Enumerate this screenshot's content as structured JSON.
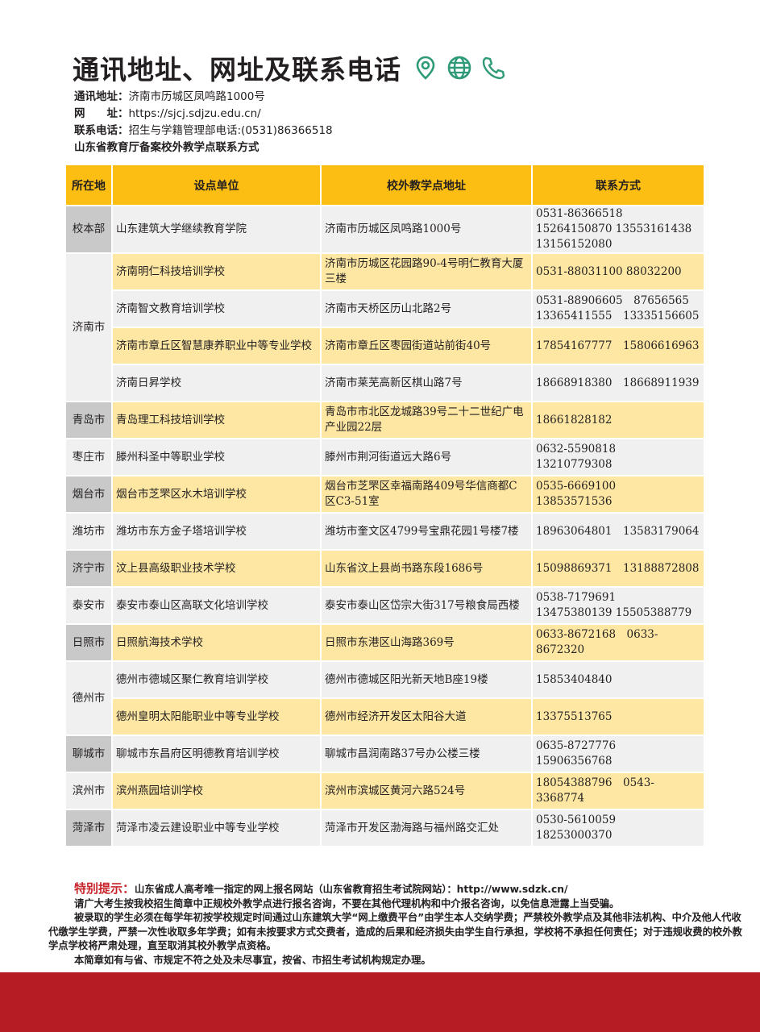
{
  "header": {
    "title": "通讯地址、网址及联系电话",
    "icons": [
      "location-pin-icon",
      "globe-icon",
      "phone-icon"
    ],
    "accent_color": "#2e9a78",
    "address_label": "通讯地址：",
    "address": "济南市历城区凤鸣路1000号",
    "website_label": "网　　址：",
    "website": "https://sjcj.sdjzu.edu.cn/",
    "phone_label": "联系电话：",
    "phone": "招生与学籍管理部电话:(0531)86366518",
    "subtitle": "山东省教育厅备案校外教学点联系方式"
  },
  "table": {
    "columns": [
      "所在地",
      "设点单位",
      "校外教学点地址",
      "联系方式"
    ],
    "colors": {
      "header": "#fdbe13",
      "highlight": "#fde7a3",
      "plain": "#f0f0f0",
      "city_dark": "#c9c9c9"
    },
    "rows": [
      {
        "city": "校本部",
        "unit": "山东建筑大学继续教育学院",
        "address": "济南市历城区凤鸣路1000号",
        "contact": "0531-86366518  15264150870 13553161438　 13156152080"
      },
      {
        "city": "济南市",
        "unit": "济南明仁科技培训学校",
        "address": "济南市历城区花园路90-4号明仁教育大厦三楼",
        "contact": "0531-88031100 88032200"
      },
      {
        "city": "",
        "unit": "济南智文教育培训学校",
        "address": "济南市天桥区历山北路2号",
        "contact": "0531-88906605　87656565 13365411555　13335156605"
      },
      {
        "city": "",
        "unit": "济南市章丘区智慧康养职业中等专业学校",
        "address": "济南市章丘区枣园街道站前街40号",
        "contact": "17854167777　15806616963"
      },
      {
        "city": "",
        "unit": "济南日昇学校",
        "address": "济南市莱芜高新区棋山路7号",
        "contact": "18668918380　18668911939"
      },
      {
        "city": "青岛市",
        "unit": "青岛理工科技培训学校",
        "address": "青岛市市北区龙城路39号二十二世纪广电产业园22层",
        "contact": "18661828182"
      },
      {
        "city": "枣庄市",
        "unit": "滕州科圣中等职业学校",
        "address": "滕州市荆河街道远大路6号",
        "contact": "0632-5590818　13210779308"
      },
      {
        "city": "烟台市",
        "unit": "烟台市芝罘区水木培训学校",
        "address": "烟台市芝罘区幸福南路409号华信商都C区C3-51室",
        "contact": "0535-6669100　13853571536"
      },
      {
        "city": "潍坊市",
        "unit": "潍坊市东方金子塔培训学校",
        "address": "潍坊市奎文区4799号宝鼎花园1号楼7楼",
        "contact": "18963064801　13583179064"
      },
      {
        "city": "济宁市",
        "unit": "汶上县高级职业技术学校",
        "address": "山东省汶上县尚书路东段1686号",
        "contact": "15098869371　13188872808"
      },
      {
        "city": "泰安市",
        "unit": "泰安市泰山区高联文化培训学校",
        "address": "泰安市泰山区岱宗大街317号粮食局西楼",
        "contact": "0538-7179691　13475380139 15505388779"
      },
      {
        "city": "日照市",
        "unit": "日照航海技术学校",
        "address": "日照市东港区山海路369号",
        "contact": "0633-8672168　0633-8672320"
      },
      {
        "city": "德州市",
        "unit": "德州市德城区聚仁教育培训学校",
        "address": "德州市德城区阳光新天地B座19楼",
        "contact": "15853404840"
      },
      {
        "city": "",
        "unit": "德州皇明太阳能职业中等专业学校",
        "address": "德州市经济开发区太阳谷大道",
        "contact": "13375513765"
      },
      {
        "city": "聊城市",
        "unit": "聊城市东昌府区明德教育培训学校",
        "address": "聊城市昌润南路37号办公楼三楼",
        "contact": "0635-8727776　15906356768"
      },
      {
        "city": "滨州市",
        "unit": "滨州燕园培训学校",
        "address": "滨州市滨城区黄河六路524号",
        "contact": "18054388796　0543-3368774"
      },
      {
        "city": "菏泽市",
        "unit": "菏泽市凌云建设职业中等专业学校",
        "address": "菏泽市开发区渤海路与福州路交汇处",
        "contact": "0530-5610059　18253000370"
      }
    ]
  },
  "notice": {
    "label": "特别提示：",
    "line1": "山东省成人高考唯一指定的网上报名网站（山东省教育招生考试院网站）：http://www.sdzk.cn/",
    "line2": "请广大考生按我校招生简章中正规校外教学点进行报名咨询，不要在其他代理机构和中介报名咨询，以免信息泄露上当受骗。",
    "line3": "被录取的学生必须在每学年初按学校规定时间通过山东建筑大学“网上缴费平台”由学生本人交纳学费；严禁校外教学点及其他非法机构、中介及他人代收代缴学生学费，严禁一次性收取多年学费；如有未按要求方式交费者，造成的后果和经济损失由学生自行承担，学校将不承担任何责任；对于违规收费的校外教学点学校将严肃处理，直至取消其校外教学点资格。",
    "line4": "本简章如有与省、市规定不符之处及未尽事宜，按省、市招生考试机构规定办理。",
    "label_color": "#c8242b"
  },
  "footer_band_color": "#b61c24"
}
